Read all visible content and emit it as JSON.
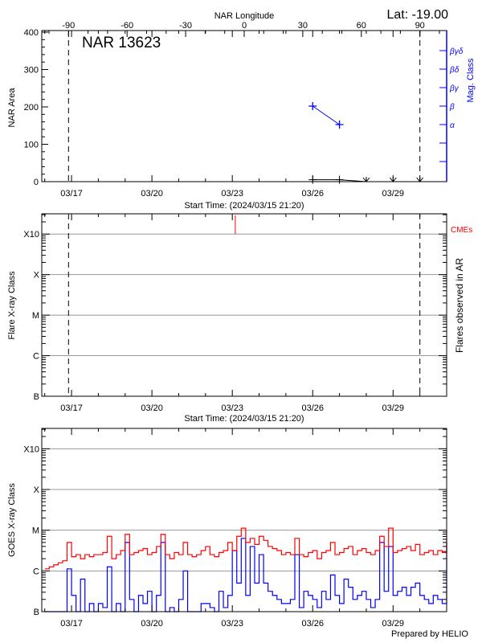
{
  "header": {
    "lat_label": "Lat: -19.00",
    "footer": "Prepared by HELIO"
  },
  "colors": {
    "axis": "#000000",
    "grid": "#999999",
    "mag": "#0000ff",
    "cme": "#ff0000",
    "goes_long": "#ff0000",
    "goes_short": "#0000ff"
  },
  "chart_data": [
    {
      "type": "line",
      "title": "NAR 13623",
      "xlabel": "Start Time: (2024/03/15 21:20)",
      "x_range": [
        "2024-03-15 21:20",
        "2024-03-31 00:00"
      ],
      "x_ticks": [
        "03/17",
        "03/20",
        "03/23",
        "03/26",
        "03/29"
      ],
      "top_xlabel": "NAR Longitude",
      "top_x_ticks": [
        "-90",
        "-60",
        "-30",
        "0",
        "30",
        "60",
        "90"
      ],
      "ylabel": "NAR Area",
      "ylim": [
        0,
        400
      ],
      "y_ticks": [
        "0",
        "100",
        "200",
        "300",
        "400"
      ],
      "y2label": "Mag. Class",
      "y2_ticks": [
        "α",
        "β",
        "βγ",
        "βδ",
        "βγδ"
      ],
      "limb_lines_longitude": [
        -90,
        90
      ],
      "area_series": {
        "x": [
          "03/26",
          "03/27",
          "03/28",
          "03/29",
          "03/30"
        ],
        "values": [
          5,
          5,
          0,
          0,
          0
        ]
      },
      "mag_series": {
        "x": [
          "03/26",
          "03/27"
        ],
        "values": [
          "β",
          "α"
        ]
      }
    },
    {
      "type": "bar",
      "xlabel": "Start Time: (2024/03/15 21:20)",
      "x_ticks": [
        "03/17",
        "03/20",
        "03/23",
        "03/26",
        "03/29"
      ],
      "ylabel": "Flare X-ray Class",
      "y_ticks": [
        "B",
        "C",
        "M",
        "X",
        "X10"
      ],
      "y_scale": "log",
      "y2label": "Flares observed in AR",
      "cme_label": "CMEs",
      "cmes": [
        "03/23 02:40"
      ],
      "limb_lines_longitude": [
        -90,
        90
      ],
      "grid": true
    },
    {
      "type": "line",
      "xlabel": "",
      "x_ticks": [
        "03/17",
        "03/20",
        "03/23",
        "03/26",
        "03/29"
      ],
      "ylabel": "GOES X-ray Class",
      "y_ticks": [
        "B",
        "C",
        "M",
        "X",
        "X10"
      ],
      "y_scale": "log",
      "grid": true,
      "x": [
        "03/16 00",
        "03/16 04",
        "03/16 08",
        "03/16 12",
        "03/16 16",
        "03/16 20",
        "03/17 00",
        "03/17 04",
        "03/17 08",
        "03/17 12",
        "03/17 16",
        "03/17 20",
        "03/18 00",
        "03/18 04",
        "03/18 08",
        "03/18 12",
        "03/18 16",
        "03/18 20",
        "03/19 00",
        "03/19 04",
        "03/19 08",
        "03/19 12",
        "03/19 16",
        "03/19 20",
        "03/20 00",
        "03/20 04",
        "03/20 08",
        "03/20 12",
        "03/20 16",
        "03/20 20",
        "03/21 00",
        "03/21 04",
        "03/21 08",
        "03/21 12",
        "03/21 16",
        "03/21 20",
        "03/22 00",
        "03/22 04",
        "03/22 08",
        "03/22 12",
        "03/22 16",
        "03/22 20",
        "03/23 00",
        "03/23 04",
        "03/23 08",
        "03/23 12",
        "03/23 16",
        "03/23 20",
        "03/24 00",
        "03/24 04",
        "03/24 08",
        "03/24 12",
        "03/24 16",
        "03/24 20",
        "03/25 00",
        "03/25 04",
        "03/25 08",
        "03/25 12",
        "03/25 16",
        "03/25 20",
        "03/26 00",
        "03/26 04",
        "03/26 08",
        "03/26 12",
        "03/26 16",
        "03/26 20",
        "03/27 00",
        "03/27 04",
        "03/27 08",
        "03/27 12",
        "03/27 16",
        "03/27 20",
        "03/28 00",
        "03/28 04",
        "03/28 08",
        "03/28 12",
        "03/28 16",
        "03/28 20",
        "03/29 00",
        "03/29 04",
        "03/29 08",
        "03/29 12",
        "03/29 16",
        "03/29 20",
        "03/30 00",
        "03/30 04",
        "03/30 08",
        "03/30 12",
        "03/30 16",
        "03/30 20",
        "03/31 00"
      ],
      "series": [
        {
          "values": [
            -5.95,
            -5.9,
            -5.85,
            -5.8,
            -5.75,
            -5.3,
            -5.65,
            -5.6,
            -5.7,
            -5.6,
            -5.65,
            -5.6,
            -5.6,
            -5.55,
            -5.15,
            -5.7,
            -5.6,
            -5.5,
            -5.1,
            -5.6,
            -5.55,
            -5.5,
            -5.45,
            -5.6,
            -5.55,
            -5.4,
            -5.1,
            -5.6,
            -5.7,
            -5.55,
            -5.6,
            -5.3,
            -5.6,
            -5.65,
            -5.6,
            -5.5,
            -5.4,
            -5.6,
            -5.65,
            -5.55,
            -5.5,
            -5.3,
            -5.5,
            -5.15,
            -4.95,
            -5.3,
            -5.2,
            -5.35,
            -5.15,
            -5.25,
            -5.4,
            -5.45,
            -5.5,
            -5.6,
            -5.55,
            -5.6,
            -5.2,
            -5.6,
            -5.65,
            -5.55,
            -5.5,
            -5.7,
            -5.55,
            -5.5,
            -5.3,
            -5.6,
            -5.55,
            -5.45,
            -5.4,
            -5.6,
            -5.5,
            -5.45,
            -5.55,
            -5.6,
            -5.5,
            -5.15,
            -5.4,
            -4.95,
            -5.55,
            -5.5,
            -5.45,
            -5.4,
            -5.5,
            -5.35,
            -5.6,
            -5.55,
            -5.5,
            -5.6,
            -5.5,
            -5.55,
            -5.0
          ]
        },
        {
          "values": [
            -7.0,
            -7.0,
            -7.0,
            -7.0,
            -7.0,
            -5.95,
            -6.6,
            -7.0,
            -6.2,
            -7.0,
            -6.8,
            -7.0,
            -6.8,
            -6.9,
            -5.9,
            -7.0,
            -6.8,
            -7.0,
            -5.3,
            -6.7,
            -7.0,
            -6.6,
            -6.8,
            -6.5,
            -7.0,
            -6.6,
            -5.3,
            -7.0,
            -6.9,
            -7.0,
            -6.7,
            -6.0,
            -7.0,
            -7.0,
            -7.0,
            -6.8,
            -6.8,
            -6.9,
            -7.0,
            -6.5,
            -6.9,
            -6.6,
            -5.5,
            -6.3,
            -5.2,
            -6.6,
            -5.4,
            -6.3,
            -5.6,
            -6.3,
            -6.5,
            -6.6,
            -6.7,
            -6.8,
            -6.8,
            -6.7,
            -5.6,
            -6.9,
            -6.5,
            -6.6,
            -6.7,
            -6.9,
            -6.5,
            -6.7,
            -6.1,
            -6.6,
            -6.8,
            -6.2,
            -6.4,
            -6.7,
            -6.6,
            -6.5,
            -6.7,
            -6.9,
            -6.7,
            -5.3,
            -6.5,
            -5.4,
            -6.6,
            -6.5,
            -6.4,
            -6.6,
            -6.4,
            -6.3,
            -6.6,
            -6.7,
            -6.8,
            -6.6,
            -6.7,
            -6.8,
            -5.3
          ]
        }
      ]
    }
  ]
}
